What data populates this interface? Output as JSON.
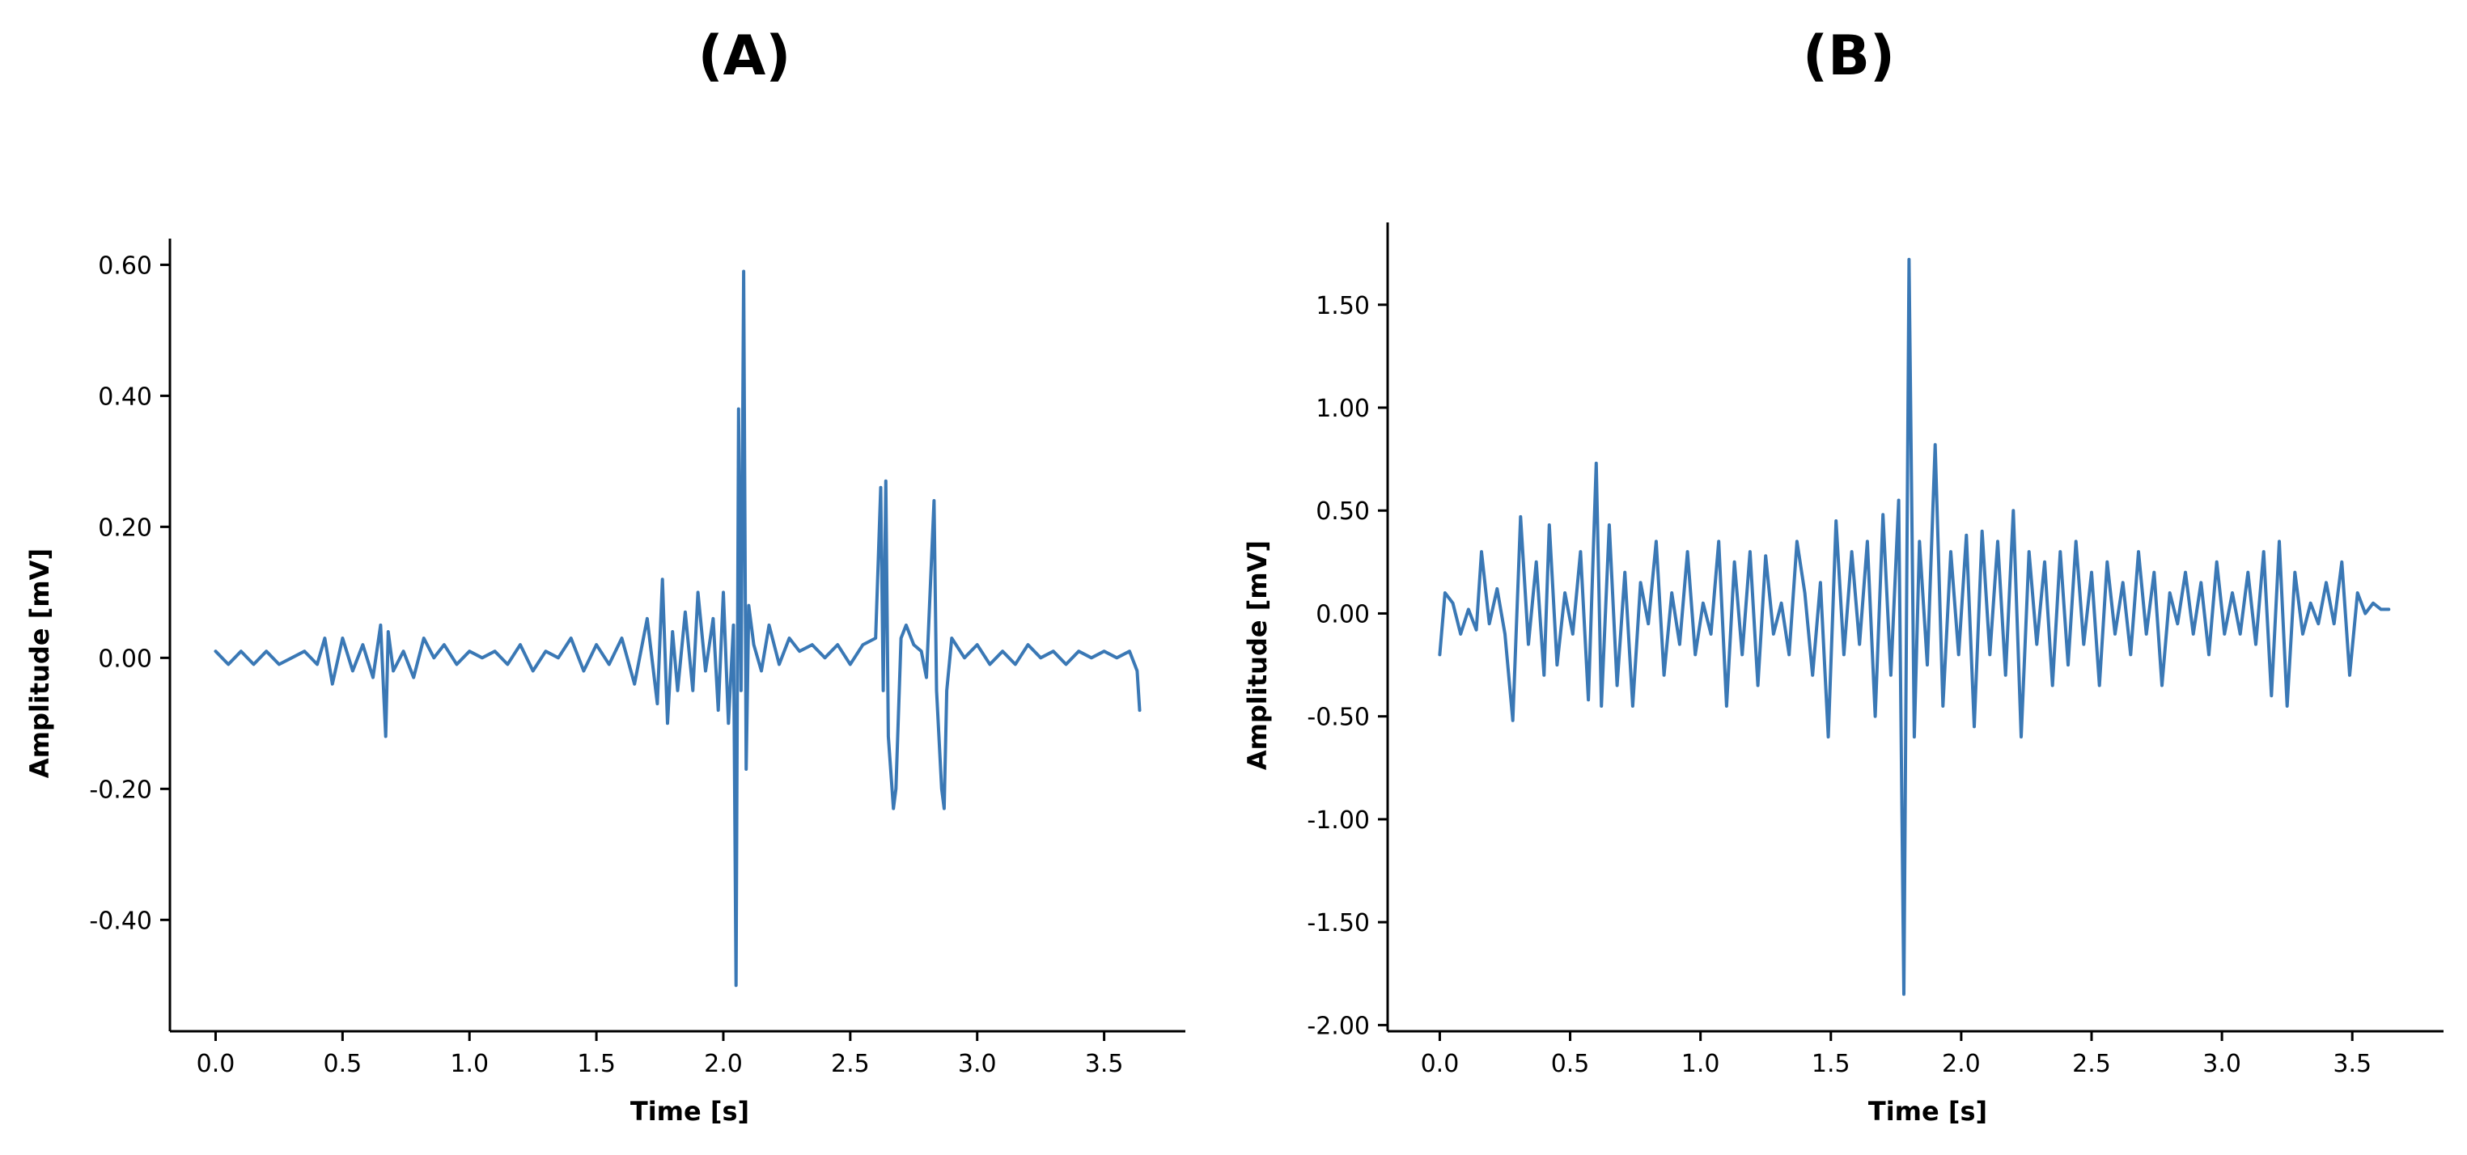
{
  "panels": [
    {
      "label": "(A)"
    },
    {
      "label": "(B)"
    }
  ],
  "chart_data": [
    {
      "type": "line",
      "title": "",
      "xlabel": "Time [s]",
      "ylabel": "Amplitude [mV]",
      "xlim": [
        -0.18,
        3.82
      ],
      "ylim": [
        -0.57,
        0.64
      ],
      "xticks": [
        0.0,
        0.5,
        1.0,
        1.5,
        2.0,
        2.5,
        3.0,
        3.5
      ],
      "xtick_labels": [
        "0.0",
        "0.5",
        "1.0",
        "1.5",
        "2.0",
        "2.5",
        "3.0",
        "3.5"
      ],
      "yticks": [
        -0.4,
        -0.2,
        0.0,
        0.2,
        0.4,
        0.6
      ],
      "ytick_labels": [
        "-0.40",
        "-0.20",
        "0.00",
        "0.20",
        "0.40",
        "0.60"
      ],
      "grid": false,
      "color": "#3a78b5",
      "series": [
        {
          "x": [
            0.0,
            0.05,
            0.1,
            0.15,
            0.2,
            0.25,
            0.3,
            0.35,
            0.4,
            0.43,
            0.46,
            0.5,
            0.54,
            0.58,
            0.62,
            0.65,
            0.67,
            0.68,
            0.7,
            0.74,
            0.78,
            0.82,
            0.86,
            0.9,
            0.95,
            1.0,
            1.05,
            1.1,
            1.15,
            1.2,
            1.25,
            1.3,
            1.35,
            1.4,
            1.45,
            1.5,
            1.55,
            1.6,
            1.65,
            1.7,
            1.74,
            1.76,
            1.78,
            1.8,
            1.82,
            1.85,
            1.88,
            1.9,
            1.93,
            1.96,
            1.98,
            2.0,
            2.02,
            2.04,
            2.05,
            2.06,
            2.07,
            2.08,
            2.09,
            2.1,
            2.12,
            2.15,
            2.18,
            2.22,
            2.26,
            2.3,
            2.35,
            2.4,
            2.45,
            2.5,
            2.55,
            2.6,
            2.62,
            2.63,
            2.64,
            2.65,
            2.67,
            2.68,
            2.7,
            2.72,
            2.75,
            2.78,
            2.8,
            2.83,
            2.84,
            2.86,
            2.87,
            2.88,
            2.9,
            2.95,
            3.0,
            3.05,
            3.1,
            3.15,
            3.2,
            3.25,
            3.3,
            3.35,
            3.4,
            3.45,
            3.5,
            3.55,
            3.6,
            3.62,
            3.63,
            3.64
          ],
          "y": [
            0.01,
            -0.01,
            0.01,
            -0.01,
            0.01,
            -0.01,
            0.0,
            0.01,
            -0.01,
            0.03,
            -0.04,
            0.03,
            -0.02,
            0.02,
            -0.03,
            0.05,
            -0.12,
            0.04,
            -0.02,
            0.01,
            -0.03,
            0.03,
            0.0,
            0.02,
            -0.01,
            0.01,
            0.0,
            0.01,
            -0.01,
            0.02,
            -0.02,
            0.01,
            0.0,
            0.03,
            -0.02,
            0.02,
            -0.01,
            0.03,
            -0.04,
            0.06,
            -0.07,
            0.12,
            -0.1,
            0.04,
            -0.05,
            0.07,
            -0.05,
            0.1,
            -0.02,
            0.06,
            -0.08,
            0.1,
            -0.1,
            0.05,
            -0.5,
            0.38,
            -0.05,
            0.59,
            -0.17,
            0.08,
            0.02,
            -0.02,
            0.05,
            -0.01,
            0.03,
            0.01,
            0.02,
            0.0,
            0.02,
            -0.01,
            0.02,
            0.03,
            0.26,
            -0.05,
            0.27,
            -0.12,
            -0.23,
            -0.2,
            0.03,
            0.05,
            0.02,
            0.01,
            -0.03,
            0.24,
            -0.05,
            -0.2,
            -0.23,
            -0.05,
            0.03,
            0.0,
            0.02,
            -0.01,
            0.01,
            -0.01,
            0.02,
            0.0,
            0.01,
            -0.01,
            0.01,
            0.0,
            0.01,
            0.0,
            0.01,
            -0.01,
            -0.02,
            -0.08
          ]
        }
      ]
    },
    {
      "type": "line",
      "title": "",
      "xlabel": "Time [s]",
      "ylabel": "Amplitude [mV]",
      "xlim": [
        -0.2,
        3.85
      ],
      "ylim": [
        -2.03,
        1.9
      ],
      "xticks": [
        0.0,
        0.5,
        1.0,
        1.5,
        2.0,
        2.5,
        3.0,
        3.5
      ],
      "xtick_labels": [
        "0.0",
        "0.5",
        "1.0",
        "1.5",
        "2.0",
        "2.5",
        "3.0",
        "3.5"
      ],
      "yticks": [
        -2.0,
        -1.5,
        -1.0,
        -0.5,
        0.0,
        0.5,
        1.0,
        1.5
      ],
      "ytick_labels": [
        "-2.00",
        "-1.50",
        "-1.00",
        "-0.50",
        "0.00",
        "0.50",
        "1.00",
        "1.50"
      ],
      "grid": false,
      "color": "#3a78b5",
      "series": [
        {
          "x": [
            0.0,
            0.02,
            0.05,
            0.08,
            0.11,
            0.14,
            0.16,
            0.19,
            0.22,
            0.25,
            0.28,
            0.31,
            0.34,
            0.37,
            0.4,
            0.42,
            0.45,
            0.48,
            0.51,
            0.54,
            0.57,
            0.6,
            0.62,
            0.65,
            0.68,
            0.71,
            0.74,
            0.77,
            0.8,
            0.83,
            0.86,
            0.89,
            0.92,
            0.95,
            0.98,
            1.01,
            1.04,
            1.07,
            1.1,
            1.13,
            1.16,
            1.19,
            1.22,
            1.25,
            1.28,
            1.31,
            1.34,
            1.37,
            1.4,
            1.43,
            1.46,
            1.49,
            1.52,
            1.55,
            1.58,
            1.61,
            1.64,
            1.67,
            1.7,
            1.73,
            1.76,
            1.78,
            1.8,
            1.82,
            1.84,
            1.87,
            1.9,
            1.93,
            1.96,
            1.99,
            2.02,
            2.05,
            2.08,
            2.11,
            2.14,
            2.17,
            2.2,
            2.23,
            2.26,
            2.29,
            2.32,
            2.35,
            2.38,
            2.41,
            2.44,
            2.47,
            2.5,
            2.53,
            2.56,
            2.59,
            2.62,
            2.65,
            2.68,
            2.71,
            2.74,
            2.77,
            2.8,
            2.83,
            2.86,
            2.89,
            2.92,
            2.95,
            2.98,
            3.01,
            3.04,
            3.07,
            3.1,
            3.13,
            3.16,
            3.19,
            3.22,
            3.25,
            3.28,
            3.31,
            3.34,
            3.37,
            3.4,
            3.43,
            3.46,
            3.49,
            3.52,
            3.55,
            3.58,
            3.61,
            3.64
          ],
          "y": [
            -0.2,
            0.1,
            0.05,
            -0.1,
            0.02,
            -0.08,
            0.3,
            -0.05,
            0.12,
            -0.1,
            -0.52,
            0.47,
            -0.15,
            0.25,
            -0.3,
            0.43,
            -0.25,
            0.1,
            -0.1,
            0.3,
            -0.42,
            0.73,
            -0.45,
            0.43,
            -0.35,
            0.2,
            -0.45,
            0.15,
            -0.05,
            0.35,
            -0.3,
            0.1,
            -0.15,
            0.3,
            -0.2,
            0.05,
            -0.1,
            0.35,
            -0.45,
            0.25,
            -0.2,
            0.3,
            -0.35,
            0.28,
            -0.1,
            0.05,
            -0.2,
            0.35,
            0.1,
            -0.3,
            0.15,
            -0.6,
            0.45,
            -0.2,
            0.3,
            -0.15,
            0.35,
            -0.5,
            0.48,
            -0.3,
            0.55,
            -1.85,
            1.72,
            -0.6,
            0.35,
            -0.25,
            0.82,
            -0.45,
            0.3,
            -0.2,
            0.38,
            -0.55,
            0.4,
            -0.2,
            0.35,
            -0.3,
            0.5,
            -0.6,
            0.3,
            -0.15,
            0.25,
            -0.35,
            0.3,
            -0.25,
            0.35,
            -0.15,
            0.2,
            -0.35,
            0.25,
            -0.1,
            0.15,
            -0.2,
            0.3,
            -0.1,
            0.2,
            -0.35,
            0.1,
            -0.05,
            0.2,
            -0.1,
            0.15,
            -0.2,
            0.25,
            -0.1,
            0.1,
            -0.1,
            0.2,
            -0.15,
            0.3,
            -0.4,
            0.35,
            -0.45,
            0.2,
            -0.1,
            0.05,
            -0.05,
            0.15,
            -0.05,
            0.25,
            -0.3,
            0.1,
            0.0,
            0.05,
            0.02,
            0.02
          ]
        }
      ]
    }
  ]
}
